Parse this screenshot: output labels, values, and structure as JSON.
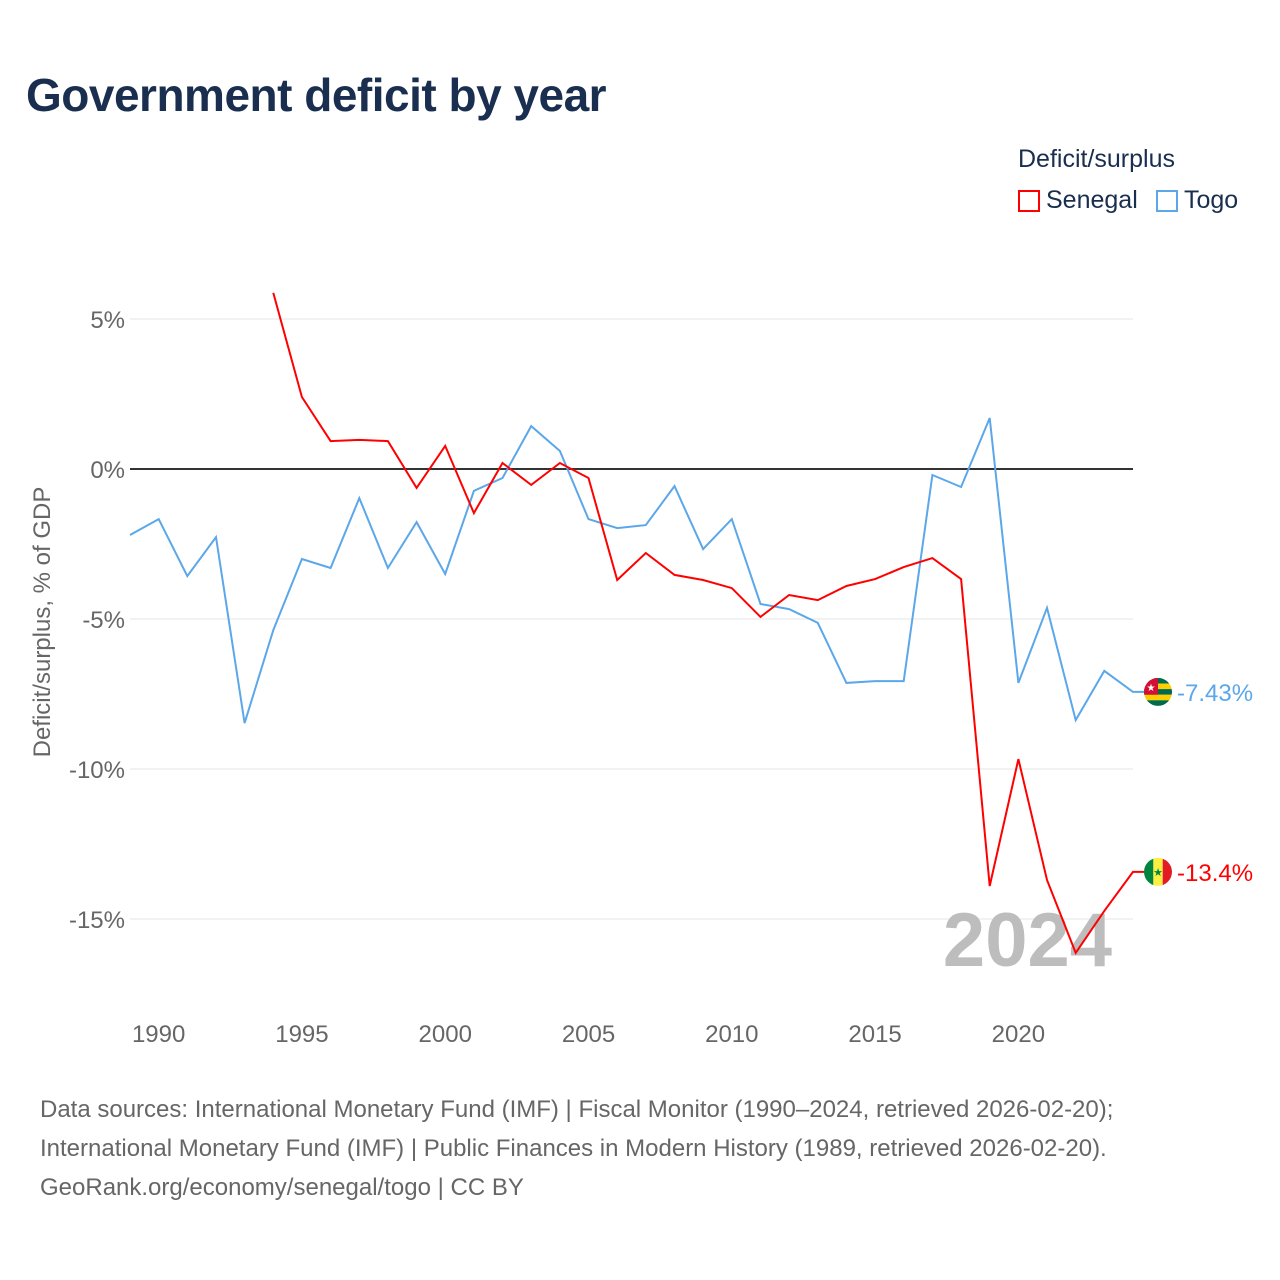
{
  "chart_data": {
    "type": "line",
    "title": "Government deficit by year",
    "ylabel": "Deficit/surplus, % of GDP",
    "xlabel": "",
    "ylim": [
      -18,
      7
    ],
    "xlim": [
      1989,
      2024
    ],
    "yticks": [
      {
        "v": 5,
        "label": "5%"
      },
      {
        "v": 0,
        "label": "0%"
      },
      {
        "v": -5,
        "label": "-5%"
      },
      {
        "v": -10,
        "label": "-10%"
      },
      {
        "v": -15,
        "label": "-15%"
      }
    ],
    "xticks": [
      {
        "v": 1990,
        "label": "1990"
      },
      {
        "v": 1995,
        "label": "1995"
      },
      {
        "v": 2000,
        "label": "2000"
      },
      {
        "v": 2005,
        "label": "2005"
      },
      {
        "v": 2010,
        "label": "2010"
      },
      {
        "v": 2015,
        "label": "2015"
      },
      {
        "v": 2020,
        "label": "2020"
      }
    ],
    "legend_title": "Deficit/surplus",
    "legend_placement": "top-right",
    "year_watermark": "2024",
    "series": [
      {
        "name": "Senegal",
        "color": "#ff0000",
        "end_label": "-13.4%",
        "start": 1994,
        "values": [
          5.87,
          2.4,
          0.93,
          0.97,
          0.93,
          -0.63,
          0.77,
          -1.47,
          0.2,
          -0.53,
          0.2,
          -0.3,
          -3.7,
          -2.8,
          -3.53,
          -3.7,
          -3.97,
          -4.93,
          -4.2,
          -4.37,
          -3.9,
          -3.67,
          -3.27,
          -2.97,
          -3.67,
          -13.9,
          -9.67,
          -13.7,
          -16.13,
          -14.73,
          -13.43
        ]
      },
      {
        "name": "Togo",
        "color": "#5ba7ea",
        "end_label": "-7.43%",
        "start": 1989,
        "values": [
          -2.2,
          -1.67,
          -3.57,
          -2.27,
          -8.47,
          -5.37,
          -3.0,
          -3.3,
          -0.97,
          -3.3,
          -1.77,
          -3.5,
          -0.73,
          -0.3,
          1.43,
          0.6,
          -1.67,
          -1.97,
          -1.87,
          -0.57,
          -2.67,
          -1.67,
          -4.5,
          -4.67,
          -5.13,
          -7.13,
          -7.07,
          -7.07,
          -0.2,
          -0.6,
          1.7,
          -7.13,
          -4.63,
          -8.37,
          -6.73,
          -7.43
        ]
      }
    ]
  },
  "source": {
    "line1": "Data sources: International Monetary Fund (IMF) | Fiscal Monitor (1990–2024, retrieved 2026-02-20);",
    "line2": "International Monetary Fund (IMF) | Public Finances in Modern History (1989, retrieved 2026-02-20).",
    "line3": "GeoRank.org/economy/senegal/togo | CC BY"
  }
}
